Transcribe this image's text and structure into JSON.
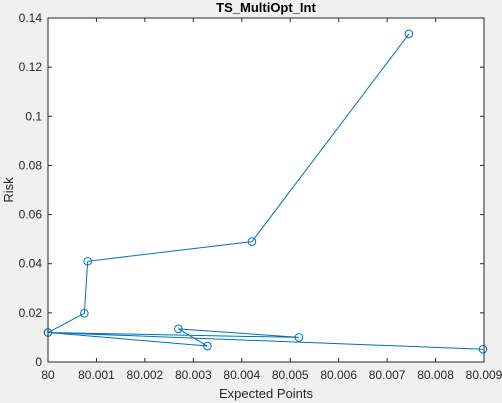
{
  "chart_data": {
    "type": "line",
    "title": "TS_MultiOpt_Int",
    "xlabel": "Expected Points",
    "ylabel": "Risk",
    "xlim": [
      80,
      80.009
    ],
    "ylim": [
      0,
      0.14
    ],
    "x_ticks": [
      80,
      80.001,
      80.002,
      80.003,
      80.004,
      80.005,
      80.006,
      80.007,
      80.008,
      80.009
    ],
    "x_tick_labels": [
      "80",
      "80.001",
      "80.002",
      "80.003",
      "80.004",
      "80.005",
      "80.006",
      "80.007",
      "80.008",
      "80.009"
    ],
    "y_ticks": [
      0,
      0.02,
      0.04,
      0.06,
      0.08,
      0.1,
      0.12,
      0.14
    ],
    "y_tick_labels": [
      "0",
      "0.02",
      "0.04",
      "0.06",
      "0.08",
      "0.1",
      "0.12",
      "0.14"
    ],
    "grid": false,
    "marker": "circle",
    "series": [
      {
        "color": "#0072BD",
        "points": [
          {
            "x": 80.00745,
            "y": 0.1335
          },
          {
            "x": 80.00421,
            "y": 0.049
          },
          {
            "x": 80.00082,
            "y": 0.041
          },
          {
            "x": 80.00075,
            "y": 0.0198
          },
          {
            "x": 80.0,
            "y": 0.012
          },
          {
            "x": 80.00518,
            "y": 0.01
          },
          {
            "x": 80.00269,
            "y": 0.0135
          },
          {
            "x": 80.00329,
            "y": 0.0065
          },
          {
            "x": 80.0,
            "y": 0.012
          },
          {
            "x": 80.00898,
            "y": 0.0052
          }
        ]
      }
    ]
  }
}
